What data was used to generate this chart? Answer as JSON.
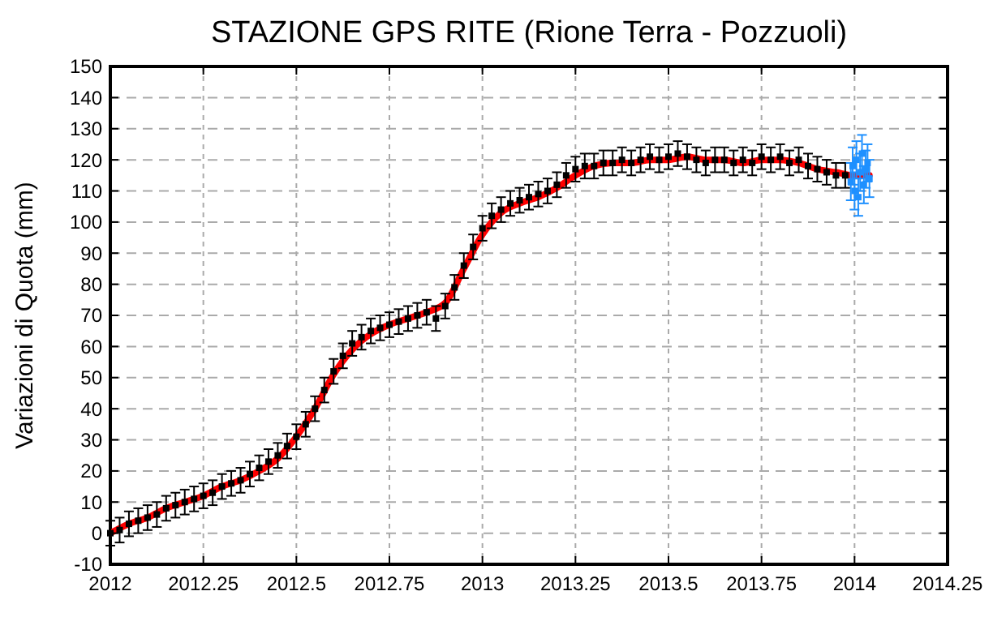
{
  "chart_data": {
    "type": "scatter",
    "title": "STAZIONE GPS RITE (Rione Terra - Pozzuoli)",
    "ylabel": "Variazioni di Quota (mm)",
    "xlim": [
      2012,
      2014.25
    ],
    "xticks": [
      2012,
      2012.25,
      2012.5,
      2012.75,
      2013,
      2013.25,
      2013.5,
      2013.75,
      2014,
      2014.25
    ],
    "ylim": [
      -10,
      150
    ],
    "yticks": [
      -10,
      0,
      10,
      20,
      30,
      40,
      50,
      60,
      70,
      80,
      90,
      100,
      110,
      120,
      130,
      140,
      150
    ],
    "grid": true,
    "series": [
      {
        "color": "#000000",
        "marker": "square",
        "errors": [
          4,
          4,
          4,
          4,
          4,
          4,
          4,
          4,
          4,
          4,
          4,
          4,
          4,
          4,
          4,
          4,
          4,
          4,
          4,
          4,
          4,
          4,
          4,
          4,
          4,
          4,
          4,
          4,
          4,
          4,
          4,
          4,
          4,
          4,
          4,
          4,
          4,
          4,
          4,
          4,
          4,
          4,
          4,
          4,
          4,
          4,
          4,
          4,
          4,
          4,
          4,
          4,
          4,
          4,
          4,
          4,
          4,
          4,
          4,
          4,
          4,
          4,
          4,
          4,
          4,
          4,
          4,
          4,
          4,
          4,
          4,
          4,
          4,
          4,
          4,
          4,
          4,
          4,
          4,
          4
        ],
        "x": [
          2012,
          2012.025,
          2012.05,
          2012.075,
          2012.1,
          2012.125,
          2012.15,
          2012.175,
          2012.2,
          2012.225,
          2012.25,
          2012.275,
          2012.3,
          2012.325,
          2012.35,
          2012.375,
          2012.4,
          2012.425,
          2012.45,
          2012.475,
          2012.5,
          2012.525,
          2012.55,
          2012.575,
          2012.6,
          2012.625,
          2012.65,
          2012.675,
          2012.7,
          2012.725,
          2012.75,
          2012.775,
          2012.8,
          2012.825,
          2012.85,
          2012.875,
          2012.9,
          2012.925,
          2012.95,
          2012.975,
          2013,
          2013.025,
          2013.05,
          2013.075,
          2013.1,
          2013.125,
          2013.15,
          2013.175,
          2013.2,
          2013.225,
          2013.25,
          2013.275,
          2013.3,
          2013.325,
          2013.35,
          2013.375,
          2013.4,
          2013.425,
          2013.45,
          2013.475,
          2013.5,
          2013.525,
          2013.55,
          2013.575,
          2013.6,
          2013.625,
          2013.65,
          2013.675,
          2013.7,
          2013.725,
          2013.75,
          2013.775,
          2013.8,
          2013.825,
          2013.85,
          2013.875,
          2013.9,
          2013.925,
          2013.95,
          2013.975
        ],
        "values": [
          0,
          1,
          3,
          4,
          5,
          6,
          8,
          9,
          10,
          11,
          12,
          13,
          15,
          16,
          17,
          19,
          21,
          23,
          25,
          28,
          31,
          35,
          40,
          46,
          52,
          57,
          61,
          63,
          65,
          66,
          67,
          68,
          69,
          70,
          71,
          69,
          73,
          79,
          86,
          92,
          98,
          102,
          104,
          106,
          107,
          108,
          109,
          110,
          112,
          115,
          117,
          118,
          118,
          119,
          119,
          120,
          119,
          120,
          121,
          120,
          121,
          122,
          121,
          120,
          119,
          120,
          120,
          119,
          120,
          119,
          121,
          120,
          121,
          119,
          120,
          118,
          117,
          116,
          115,
          115
        ]
      },
      {
        "color": "#1e90ff",
        "marker": "square",
        "errors": [
          6,
          6,
          6,
          6,
          6,
          6,
          6,
          6,
          6,
          6,
          6
        ],
        "x": [
          2013.99,
          2013.995,
          2014,
          2014.005,
          2014.01,
          2014.015,
          2014.02,
          2014.025,
          2014.03,
          2014.035,
          2014.04
        ],
        "values": [
          113,
          118,
          110,
          120,
          108,
          116,
          122,
          112,
          117,
          119,
          114
        ]
      },
      {
        "type": "line",
        "color": "#ff0000",
        "marker": "none",
        "x": [
          2012,
          2012.05,
          2012.1,
          2012.15,
          2012.2,
          2012.25,
          2012.3,
          2012.35,
          2012.4,
          2012.45,
          2012.5,
          2012.55,
          2012.6,
          2012.65,
          2012.7,
          2012.75,
          2012.8,
          2012.85,
          2012.9,
          2012.95,
          2013,
          2013.05,
          2013.1,
          2013.15,
          2013.2,
          2013.25,
          2013.3,
          2013.35,
          2013.4,
          2013.45,
          2013.5,
          2013.55,
          2013.6,
          2013.65,
          2013.7,
          2013.75,
          2013.8,
          2013.85,
          2013.9,
          2013.95,
          2014,
          2014.04
        ],
        "values": [
          0,
          3,
          5,
          8,
          10,
          12,
          15,
          17,
          20,
          24,
          31,
          40,
          51,
          59,
          64,
          67,
          69,
          71,
          74,
          85,
          96,
          103,
          106,
          108,
          111,
          115,
          118,
          119,
          119,
          120,
          120,
          121,
          120,
          120,
          119,
          120,
          120,
          119,
          117,
          116,
          115,
          115
        ]
      }
    ]
  }
}
